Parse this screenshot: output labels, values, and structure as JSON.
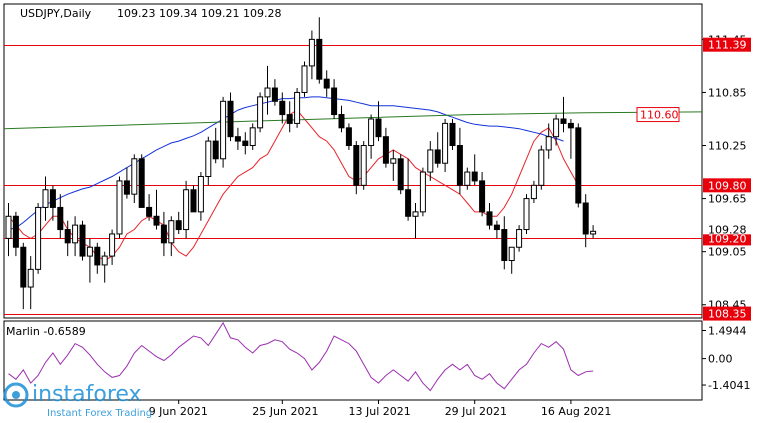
{
  "header": {
    "symbol": "USDJPY,Daily",
    "ohlc": "109.23 109.34 109.21 109.28"
  },
  "watermark": {
    "brand": "instaforex",
    "tagline": "Instant Forex Trading"
  },
  "colors": {
    "background": "#ffffff",
    "frame": "#000000",
    "candle": "#000000",
    "ma_fast": "#e8232a",
    "ma_slow": "#1432d8",
    "ma_long": "#2a7a22",
    "level_line": "#e8000b",
    "level_badge": "#e8000b",
    "oscillator": "#9b2fae",
    "watermark": "#1c8fd6"
  },
  "chart_data": [
    {
      "type": "candlestick",
      "title": "USDJPY,Daily",
      "ylim": [
        108.3,
        111.85
      ],
      "y_ticks": [
        "111.45",
        "110.85",
        "110.25",
        "109.65",
        "109.05",
        "108.45"
      ],
      "x_ticks": [
        "9 Jun 2021",
        "25 Jun 2021",
        "13 Jul 2021",
        "29 Jul 2021",
        "16 Aug 2021"
      ],
      "x_tick_index": [
        23,
        37,
        50,
        63,
        76
      ],
      "current_price": "109.28",
      "levels": [
        {
          "value": 111.39,
          "label": "111.39"
        },
        {
          "value": 109.8,
          "label": "109.80"
        },
        {
          "value": 109.2,
          "label": "109.20"
        },
        {
          "value": 108.35,
          "label": "108.35"
        }
      ],
      "long_ma_label": {
        "value": 110.6,
        "label": "110.60"
      },
      "candles": [
        [
          109.2,
          109.6,
          109.0,
          109.45
        ],
        [
          109.45,
          109.5,
          109.0,
          109.1
        ],
        [
          109.1,
          109.15,
          108.4,
          108.65
        ],
        [
          108.65,
          109.0,
          108.4,
          108.85
        ],
        [
          108.85,
          109.6,
          108.8,
          109.55
        ],
        [
          109.55,
          109.9,
          109.4,
          109.75
        ],
        [
          109.75,
          109.8,
          109.4,
          109.55
        ],
        [
          109.55,
          109.7,
          109.2,
          109.3
        ],
        [
          109.3,
          109.4,
          109.0,
          109.15
        ],
        [
          109.15,
          109.45,
          109.0,
          109.35
        ],
        [
          109.35,
          109.4,
          108.95,
          109.0
        ],
        [
          109.0,
          109.2,
          108.7,
          109.1
        ],
        [
          109.1,
          109.15,
          108.8,
          108.9
        ],
        [
          108.9,
          109.05,
          108.7,
          109.0
        ],
        [
          109.0,
          109.3,
          108.9,
          109.25
        ],
        [
          109.25,
          109.9,
          109.2,
          109.85
        ],
        [
          109.85,
          110.0,
          109.65,
          109.7
        ],
        [
          109.7,
          110.15,
          109.6,
          110.1
        ],
        [
          110.1,
          110.15,
          109.55,
          109.55
        ],
        [
          109.55,
          109.7,
          109.4,
          109.45
        ],
        [
          109.45,
          109.75,
          109.3,
          109.35
        ],
        [
          109.35,
          109.5,
          109.0,
          109.15
        ],
        [
          109.15,
          109.45,
          109.0,
          109.4
        ],
        [
          109.4,
          109.5,
          109.25,
          109.3
        ],
        [
          109.3,
          109.85,
          109.2,
          109.75
        ],
        [
          109.75,
          109.8,
          109.5,
          109.5
        ],
        [
          109.5,
          109.95,
          109.4,
          109.9
        ],
        [
          109.9,
          110.35,
          109.8,
          110.3
        ],
        [
          110.3,
          110.45,
          110.05,
          110.1
        ],
        [
          110.1,
          110.8,
          110.0,
          110.75
        ],
        [
          110.75,
          110.85,
          110.3,
          110.35
        ],
        [
          110.35,
          110.45,
          110.2,
          110.3
        ],
        [
          110.3,
          110.4,
          110.15,
          110.25
        ],
        [
          110.25,
          110.5,
          110.2,
          110.45
        ],
        [
          110.45,
          110.85,
          110.4,
          110.8
        ],
        [
          110.8,
          111.15,
          110.6,
          110.9
        ],
        [
          110.9,
          111.0,
          110.7,
          110.75
        ],
        [
          110.75,
          110.85,
          110.5,
          110.6
        ],
        [
          110.6,
          110.75,
          110.4,
          110.5
        ],
        [
          110.5,
          110.9,
          110.45,
          110.85
        ],
        [
          110.85,
          111.2,
          110.8,
          111.15
        ],
        [
          111.15,
          111.55,
          111.0,
          111.45
        ],
        [
          111.45,
          111.7,
          110.95,
          111.0
        ],
        [
          111.0,
          111.1,
          110.8,
          110.9
        ],
        [
          110.9,
          111.0,
          110.55,
          110.6
        ],
        [
          110.6,
          110.7,
          110.4,
          110.45
        ],
        [
          110.45,
          110.5,
          110.2,
          110.25
        ],
        [
          110.25,
          110.3,
          109.7,
          109.8
        ],
        [
          109.8,
          110.3,
          109.75,
          110.25
        ],
        [
          110.25,
          110.6,
          110.1,
          110.55
        ],
        [
          110.55,
          110.75,
          110.3,
          110.35
        ],
        [
          110.35,
          110.45,
          110.0,
          110.05
        ],
        [
          110.05,
          110.2,
          109.85,
          110.1
        ],
        [
          110.1,
          110.15,
          109.7,
          109.75
        ],
        [
          109.75,
          110.1,
          109.4,
          109.45
        ],
        [
          109.45,
          109.6,
          109.2,
          109.5
        ],
        [
          109.5,
          110.0,
          109.45,
          109.95
        ],
        [
          109.95,
          110.3,
          109.85,
          110.2
        ],
        [
          110.2,
          110.4,
          110.0,
          110.05
        ],
        [
          110.05,
          110.55,
          109.95,
          110.5
        ],
        [
          110.5,
          110.55,
          110.2,
          110.25
        ],
        [
          110.25,
          110.45,
          109.7,
          109.8
        ],
        [
          109.8,
          110.0,
          109.75,
          109.95
        ],
        [
          109.95,
          110.15,
          109.8,
          109.85
        ],
        [
          109.85,
          109.95,
          109.45,
          109.5
        ],
        [
          109.5,
          109.6,
          109.3,
          109.35
        ],
        [
          109.35,
          109.4,
          109.2,
          109.3
        ],
        [
          109.3,
          109.45,
          108.85,
          108.95
        ],
        [
          108.95,
          109.1,
          108.8,
          109.1
        ],
        [
          109.1,
          109.35,
          109.05,
          109.3
        ],
        [
          109.3,
          109.7,
          109.25,
          109.65
        ],
        [
          109.65,
          109.85,
          109.6,
          109.8
        ],
        [
          109.8,
          110.25,
          109.75,
          110.2
        ],
        [
          110.2,
          110.5,
          110.1,
          110.35
        ],
        [
          110.35,
          110.6,
          110.25,
          110.55
        ],
        [
          110.55,
          110.8,
          110.4,
          110.5
        ],
        [
          110.5,
          110.55,
          110.1,
          110.45
        ],
        [
          110.45,
          110.5,
          109.55,
          109.6
        ],
        [
          109.6,
          109.7,
          109.1,
          109.25
        ],
        [
          109.25,
          109.35,
          109.2,
          109.28
        ]
      ],
      "series": [
        {
          "name": "",
          "type": "line",
          "start_index": 0,
          "values": [
            109.45,
            109.35,
            109.25,
            109.2,
            109.25,
            109.35,
            109.45,
            109.45,
            109.3,
            109.2,
            109.15,
            109.1,
            109.0,
            108.95,
            109.0,
            109.1,
            109.25,
            109.3,
            109.4,
            109.45,
            109.4,
            109.35,
            109.15,
            109.05,
            109.0,
            109.1,
            109.25,
            109.4,
            109.55,
            109.7,
            109.8,
            109.9,
            109.95,
            110.0,
            110.1,
            110.15,
            110.3,
            110.45,
            110.6,
            110.65,
            110.55,
            110.45,
            110.35,
            110.3,
            110.2,
            110.05,
            109.9,
            109.85,
            109.9,
            110.0,
            110.1,
            110.15,
            110.2,
            110.15,
            110.1,
            110.0,
            109.95,
            109.9,
            109.85,
            109.8,
            109.75,
            109.7,
            109.6,
            109.5,
            109.5,
            109.45,
            109.45,
            109.55,
            109.7,
            109.9,
            110.1,
            110.3,
            110.4,
            110.45,
            110.3,
            110.1,
            109.95,
            109.8
          ]
        },
        {
          "name": "",
          "type": "line",
          "start_index": 0,
          "values": [
            109.3,
            109.32,
            109.38,
            109.45,
            109.52,
            109.58,
            109.62,
            109.66,
            109.7,
            109.73,
            109.76,
            109.78,
            109.82,
            109.86,
            109.9,
            109.95,
            110.0,
            110.05,
            110.1,
            110.15,
            110.2,
            110.24,
            110.28,
            110.3,
            110.33,
            110.36,
            110.4,
            110.45,
            110.5,
            110.55,
            110.6,
            110.65,
            110.68,
            110.7,
            110.72,
            110.74,
            110.76,
            110.78,
            110.78,
            110.79,
            110.79,
            110.8,
            110.8,
            110.79,
            110.78,
            110.77,
            110.76,
            110.74,
            110.72,
            110.7,
            110.7,
            110.7,
            110.7,
            110.69,
            110.68,
            110.67,
            110.66,
            110.65,
            110.63,
            110.6,
            110.57,
            110.54,
            110.51,
            110.49,
            110.48,
            110.47,
            110.47,
            110.46,
            110.45,
            110.44,
            110.42,
            110.4,
            110.38,
            110.35,
            110.33,
            110.3
          ]
        },
        {
          "name": "",
          "type": "line",
          "start_index": 0,
          "values": [
            110.44,
            110.48,
            110.52,
            110.56,
            110.6,
            110.62,
            110.63
          ]
        }
      ]
    },
    {
      "type": "line",
      "title": "Marlin -0.6589",
      "ylim": [
        -2.2,
        2.0
      ],
      "y_ticks": [
        "1.4944",
        "0.00",
        "-1.4041"
      ],
      "series": [
        {
          "name": "Marlin",
          "values": [
            -0.8,
            -1.1,
            -0.6,
            -1.3,
            -0.9,
            -0.2,
            0.3,
            -0.3,
            0.2,
            0.8,
            0.6,
            0.2,
            -0.3,
            -0.7,
            -1.0,
            -0.9,
            -0.4,
            0.3,
            0.7,
            0.4,
            0.1,
            -0.1,
            0.2,
            0.6,
            0.9,
            1.2,
            1.1,
            0.7,
            1.3,
            1.9,
            1.1,
            1.0,
            0.6,
            0.3,
            0.7,
            0.8,
            1.0,
            0.9,
            0.5,
            0.3,
            0.0,
            -0.6,
            -0.2,
            0.4,
            1.2,
            1.0,
            0.8,
            0.4,
            -0.3,
            -1.0,
            -1.3,
            -0.9,
            -0.6,
            -0.9,
            -1.2,
            -0.7,
            -1.3,
            -1.7,
            -1.1,
            -0.6,
            -0.3,
            -0.6,
            -0.3,
            -0.9,
            -1.1,
            -0.8,
            -1.3,
            -1.6,
            -1.1,
            -0.6,
            -0.3,
            0.3,
            0.8,
            0.6,
            0.9,
            0.5,
            -0.6,
            -0.9,
            -0.7,
            -0.66
          ]
        }
      ]
    }
  ]
}
